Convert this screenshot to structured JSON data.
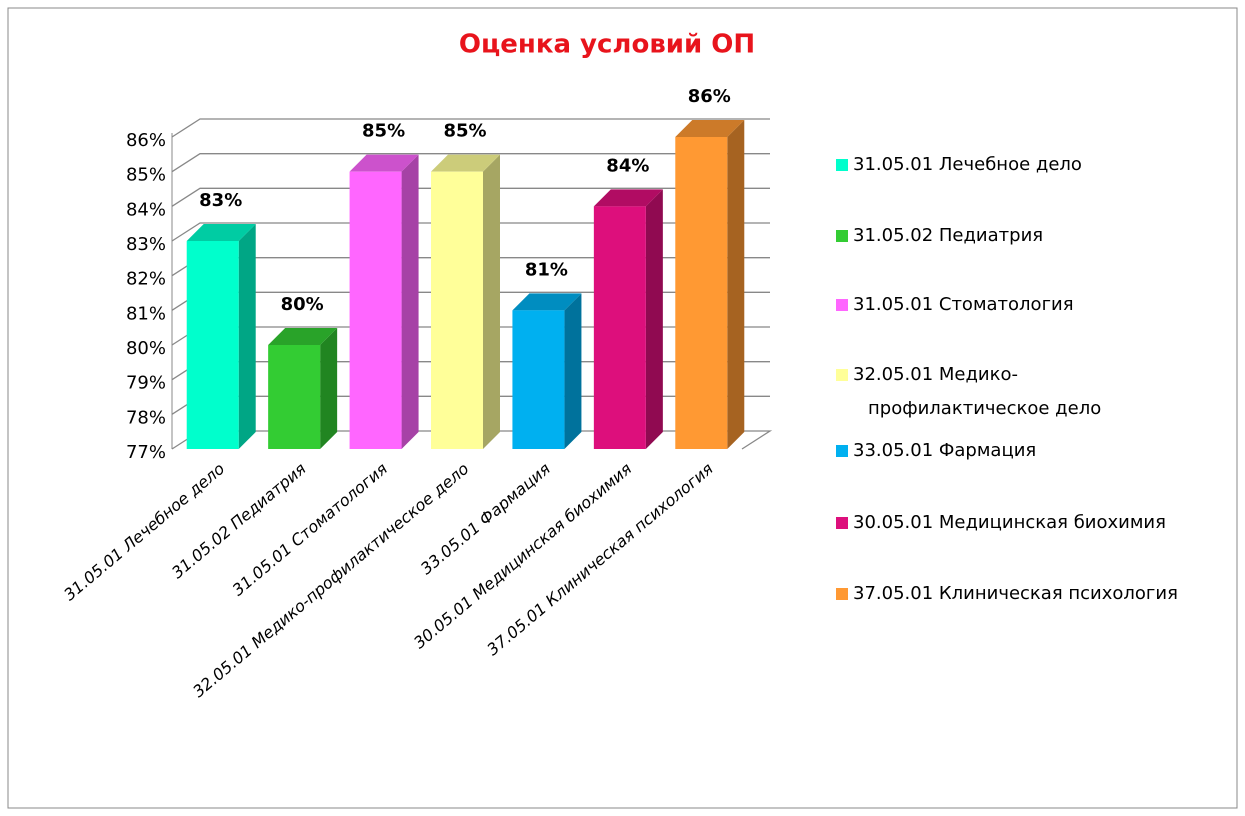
{
  "chart_data": {
    "type": "bar3d",
    "title": "Оценка условий ОП",
    "categories": [
      "31.05.01 Лечебное дело",
      "31.05.02 Педиатрия",
      "31.05.01 Стоматология",
      "32.05.01 Медико-профилактическое дело",
      "33.05.01 Фармация",
      "30.05.01 Медицинская биохимия",
      "37.05.01 Клиническая психология"
    ],
    "values": [
      83,
      80,
      85,
      85,
      81,
      84,
      86
    ],
    "value_labels": [
      "83%",
      "80%",
      "85%",
      "85%",
      "81%",
      "84%",
      "86%"
    ],
    "colors": [
      "#00ffcc",
      "#33cc33",
      "#ff66ff",
      "#ffff99",
      "#00b0f0",
      "#dd0f7c",
      "#ff9933"
    ],
    "ylim": [
      77,
      86
    ],
    "yticks": [
      {
        "value": 77,
        "label": "77%"
      },
      {
        "value": 78,
        "label": "78%"
      },
      {
        "value": 79,
        "label": "79%"
      },
      {
        "value": 80,
        "label": "80%"
      },
      {
        "value": 81,
        "label": "81%"
      },
      {
        "value": 82,
        "label": "82%"
      },
      {
        "value": 83,
        "label": "83%"
      },
      {
        "value": 84,
        "label": "84%"
      },
      {
        "value": 85,
        "label": "85%"
      },
      {
        "value": 86,
        "label": "86%"
      }
    ],
    "grid": true,
    "legend": "right"
  }
}
